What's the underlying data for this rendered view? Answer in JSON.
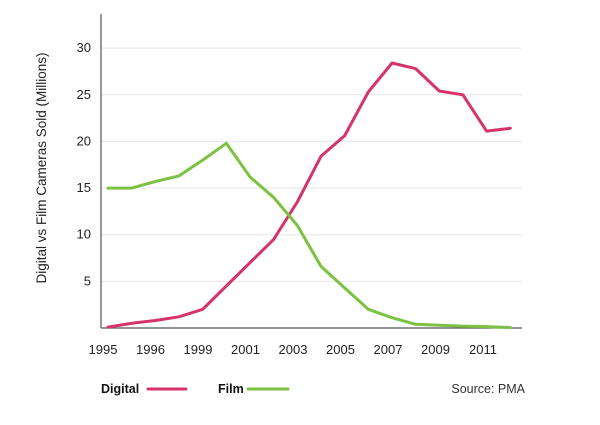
{
  "chart_data": {
    "type": "line",
    "ylabel": "Digital vs Film Cameras Sold (Millions)",
    "xlabel": "",
    "x": [
      1995,
      1996,
      1997,
      1998,
      1999,
      2000,
      2001,
      2002,
      2003,
      2004,
      2005,
      2006,
      2007,
      2008,
      2009,
      2010,
      2011,
      2012
    ],
    "x_tick_labels": [
      "1995",
      "1996",
      "1999",
      "2001",
      "2003",
      "2005",
      "2007",
      "2009",
      "2011"
    ],
    "y_ticks": [
      5,
      10,
      15,
      20,
      25,
      30
    ],
    "ylim": [
      0,
      33
    ],
    "grid": "horizontal",
    "series": [
      {
        "name": "Digital",
        "color": "#d6336c",
        "values": [
          0.1,
          0.5,
          0.8,
          1.2,
          2.0,
          4.5,
          7.0,
          9.5,
          13.5,
          18.4,
          20.6,
          25.3,
          28.4,
          27.8,
          25.4,
          25.0,
          21.1,
          21.4
        ]
      },
      {
        "name": "Film",
        "color": "#7cc242",
        "values": [
          15.0,
          15.0,
          15.7,
          16.3,
          18.0,
          19.8,
          16.2,
          14.0,
          11.0,
          6.6,
          4.3,
          2.0,
          1.1,
          0.4,
          0.3,
          0.2,
          0.15,
          0.05
        ]
      }
    ],
    "legend_position": "bottom-left",
    "source": "Source: PMA"
  }
}
